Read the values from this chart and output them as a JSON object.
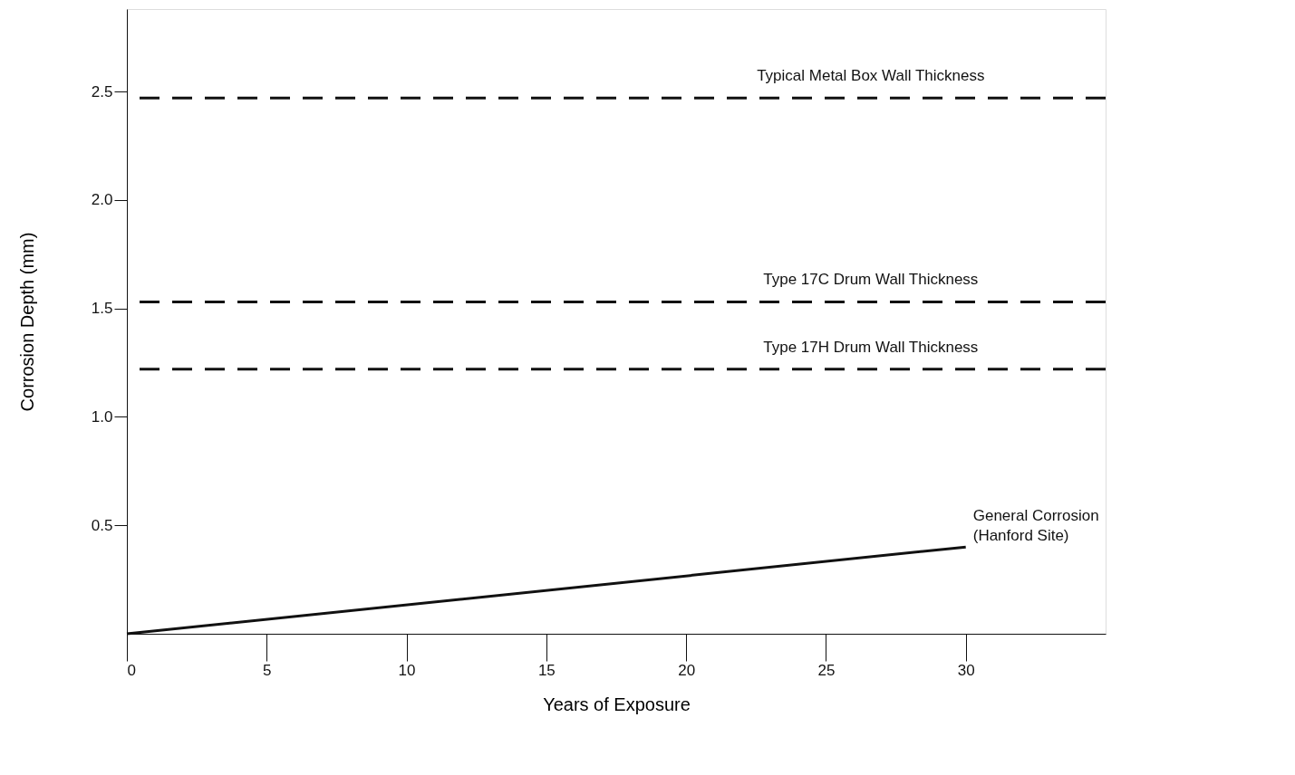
{
  "chart_data": {
    "type": "line",
    "xlabel": "Years of Exposure",
    "ylabel": "Corrosion Depth (mm)",
    "x": [
      0,
      30
    ],
    "series": [
      {
        "color": "#111111",
        "values": [
          0,
          0.4
        ]
      }
    ],
    "xlim": [
      0,
      35
    ],
    "ylim": [
      0,
      2.88
    ],
    "xticks": [
      0,
      5,
      10,
      15,
      20,
      25,
      30
    ],
    "yticks": [
      0.5,
      {
        "value": 1,
        "label": "1.0"
      },
      1.5,
      {
        "value": 2,
        "label": "2.0"
      },
      2.5
    ],
    "ref_lines": [
      {
        "axis": "y",
        "value": 2.47,
        "label": "Typical Metal Box Wall Thickness",
        "line_style": "dashed",
        "color": "#111111"
      },
      {
        "axis": "y",
        "value": 1.53,
        "label": "Type 17C Drum Wall Thickness",
        "line_style": "dashed",
        "color": "#111111"
      },
      {
        "axis": "y",
        "value": 1.22,
        "label": "Type 17H Drum Wall Thickness",
        "line_style": "dashed",
        "color": "#111111"
      }
    ],
    "annotations": [
      {
        "text": "General Corrosion\n(Hanford Site)",
        "x": 30,
        "y": 0.4
      }
    ],
    "grid": false,
    "marker": "none",
    "line_style": "solid"
  }
}
